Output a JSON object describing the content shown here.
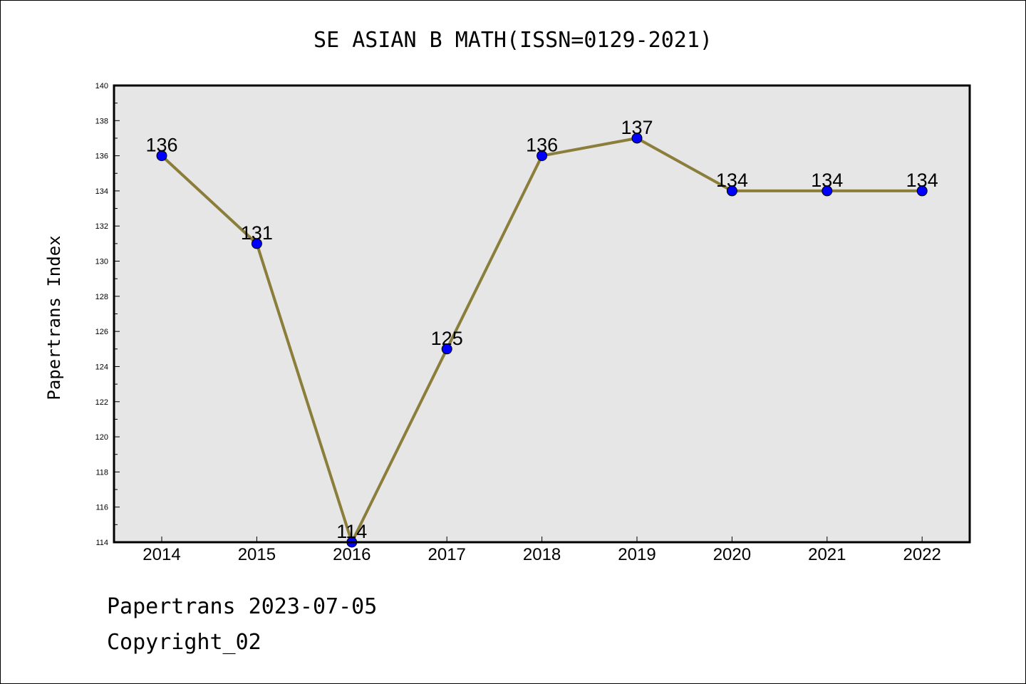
{
  "chart_data": {
    "type": "line",
    "title": "SE ASIAN B MATH(ISSN=0129-2021)",
    "xlabel": "",
    "ylabel": "Papertrans Index",
    "categories": [
      "2014",
      "2015",
      "2016",
      "2017",
      "2018",
      "2019",
      "2020",
      "2021",
      "2022"
    ],
    "series": [
      {
        "values": [
          136,
          131,
          114,
          125,
          136,
          137,
          134,
          134,
          134
        ],
        "line_color": "#8b7d3a",
        "marker_color": "#0000ff"
      }
    ],
    "data_labels": [
      "136",
      "131",
      "114",
      "125",
      "136",
      "137",
      "134",
      "134",
      "134"
    ],
    "ylim": [
      114,
      140
    ],
    "yticks": [
      "114",
      "116",
      "118",
      "120",
      "122",
      "124",
      "126",
      "128",
      "130",
      "132",
      "134",
      "136",
      "138",
      "140"
    ],
    "plot_background": "#e6e6e6",
    "grid": false
  },
  "footer": {
    "line1": "Papertrans 2023-07-05",
    "line2": "Copyright_02"
  }
}
